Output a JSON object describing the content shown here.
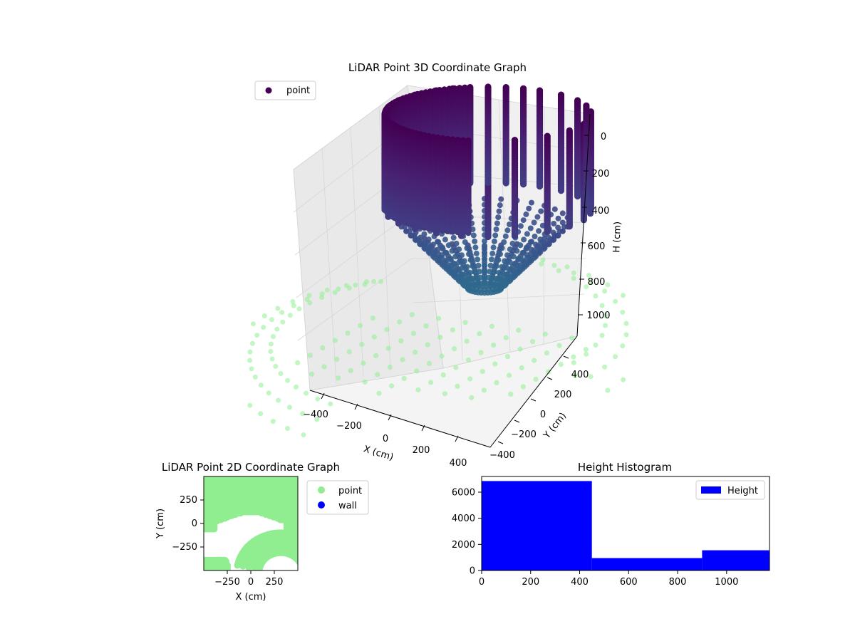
{
  "figure": {
    "background": "#ffffff"
  },
  "chart_data": [
    {
      "type": "scatter",
      "projection": "3d",
      "title": "LiDAR Point 3D Coordinate Graph",
      "xlabel": "X (cm)",
      "ylabel": "Y (cm)",
      "zlabel": "H (cm)",
      "x_ticks": [
        "−400",
        "−200",
        "0",
        "200",
        "400"
      ],
      "y_ticks": [
        "400",
        "200",
        "0",
        "−200",
        "−400"
      ],
      "z_ticks": [
        "0",
        "200",
        "400",
        "600",
        "800",
        "1000"
      ],
      "xlim": [
        -480,
        480
      ],
      "ylim": [
        -480,
        480
      ],
      "zlim": [
        -40,
        1120
      ],
      "z_inverted": true,
      "grid": true,
      "legend": {
        "location": "upper-left",
        "entries": [
          {
            "label": "point",
            "color": "#440154"
          }
        ]
      },
      "colormap": "viridis",
      "series": [
        {
          "name": "point",
          "shape": "vertical-cylinder-of-point-columns",
          "radius_cm": 330,
          "angles_deg": [
            -75,
            -55,
            -38,
            -22,
            -8,
            5,
            18,
            30,
            45,
            60,
            70,
            80,
            90,
            100,
            110,
            120,
            135,
            150,
            165,
            180,
            195,
            210,
            225,
            240,
            255,
            270,
            285
          ],
          "h_start_cm": 0,
          "h_end_cm": 500
        },
        {
          "name": "point",
          "shape": "cone-of-point-rays",
          "ray_count": 32,
          "outer_radius_cm": 330,
          "outer_h_cm": 600,
          "inner_radius_cm": 60,
          "inner_h_cm": 950
        },
        {
          "name": "point",
          "shape": "floor-dots",
          "color": "#90ee90",
          "grid_step_cm": 110
        }
      ]
    },
    {
      "type": "scatter",
      "title": "LiDAR Point 2D Coordinate Graph",
      "xlabel": "X (cm)",
      "ylabel": "Y (cm)",
      "x_ticks": [
        "−250",
        "0",
        "250"
      ],
      "y_ticks": [
        "250",
        "0",
        "−250"
      ],
      "xlim": [
        -500,
        500
      ],
      "ylim": [
        -500,
        500
      ],
      "legend": {
        "location": "outside-right",
        "entries": [
          {
            "label": "point",
            "color": "#90ee90"
          },
          {
            "label": "wall",
            "color": "#0000ff"
          }
        ]
      },
      "series": [
        {
          "name": "point",
          "color": "#90ee90",
          "shape": "upper-half-filled-disk",
          "radius_cm": 520
        },
        {
          "name": "point",
          "color": "#90ee90",
          "shape": "concentric-arcs-lower",
          "arc_radii_cm": [
            230,
            290,
            350,
            410,
            470
          ]
        }
      ]
    },
    {
      "type": "bar",
      "histogram": true,
      "title": "Height Histogram",
      "xlabel": "",
      "ylabel": "",
      "x_ticks": [
        "0",
        "200",
        "400",
        "600",
        "800",
        "1000"
      ],
      "y_ticks": [
        "0",
        "2000",
        "4000",
        "6000"
      ],
      "xlim": [
        0,
        1175
      ],
      "ylim": [
        0,
        7200
      ],
      "legend": {
        "location": "upper-right",
        "entries": [
          {
            "label": "Height",
            "color": "#0000ff"
          }
        ]
      },
      "bins": [
        {
          "start": 0,
          "end": 450,
          "count": 6850
        },
        {
          "start": 450,
          "end": 900,
          "count": 950
        },
        {
          "start": 900,
          "end": 1175,
          "count": 1550
        }
      ],
      "color": "#0000ff"
    }
  ]
}
